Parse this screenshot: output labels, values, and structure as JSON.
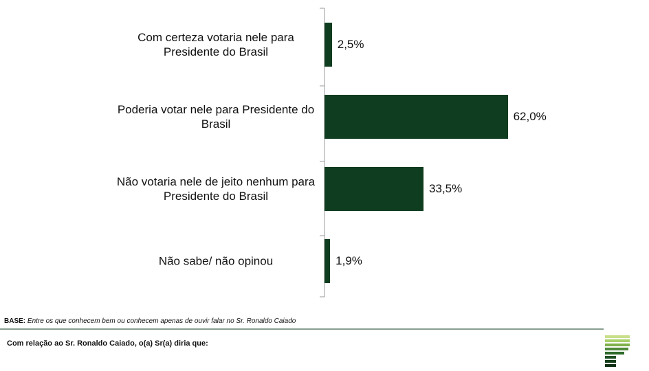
{
  "chart_data": {
    "type": "bar",
    "orientation": "horizontal",
    "categories": [
      "Com certeza votaria nele para Presidente do Brasil",
      "Poderia votar nele para Presidente do Brasil",
      "Não votaria nele de jeito nenhum para Presidente do Brasil",
      "Não sabe/ não opinou"
    ],
    "values": [
      2.5,
      62.0,
      33.5,
      1.9
    ],
    "value_labels": [
      "2,5%",
      "62,0%",
      "33,5%",
      "1,9%"
    ],
    "color": "#0f3d1f"
  },
  "footer": {
    "base_label": "BASE:",
    "base_text": "Entre os que conhecem bem ou conhecem apenas de ouvir falar no Sr. Ronaldo Caiado",
    "question": "Com relação ao Sr. Ronaldo Caiado, o(a) Sr(a) diria que:"
  }
}
